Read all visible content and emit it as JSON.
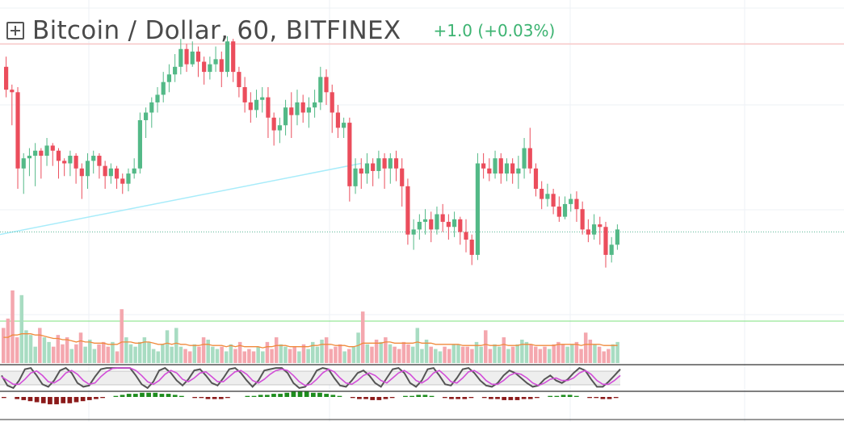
{
  "header": {
    "symbol_title": "Bitcoin / Dollar, 60, BITFINEX",
    "change_text": "+1.0 (+0.03%)"
  },
  "colors": {
    "up": "#53b987",
    "down": "#eb4d5c",
    "up_volume": "#a8dcc2",
    "down_volume": "#f4a7ae",
    "volume_ma": "#f08a3c",
    "trendline": "#a8ecfa",
    "stoch_k": "#555555",
    "stoch_d": "#d24ed8",
    "macd_hist_up": "#1e8c1e",
    "macd_hist_down": "#8b1a1a",
    "price_level_line": "#f7c6c6",
    "volume_level_line": "#7ee07e",
    "last_price_line": "#5fb99a"
  },
  "chart_data": [
    {
      "type": "candlestick",
      "title": "Bitcoin / Dollar, 60, BITFINEX",
      "ylim": [
        0,
        100
      ],
      "note_units": "y values expressed on a 0-100 relative price scale (no price axis labels visible)",
      "candles": [
        [
          88,
          79,
          92,
          76
        ],
        [
          79,
          78,
          81,
          65
        ],
        [
          78,
          48,
          80,
          40
        ],
        [
          48,
          52,
          54,
          38
        ],
        [
          52,
          53,
          56,
          45
        ],
        [
          53,
          55,
          58,
          41
        ],
        [
          55,
          53,
          56,
          44
        ],
        [
          53,
          57,
          60,
          49
        ],
        [
          57,
          55,
          58,
          49
        ],
        [
          55,
          51,
          56,
          44
        ],
        [
          51,
          50,
          52,
          45
        ],
        [
          50,
          53,
          55,
          45
        ],
        [
          53,
          48,
          54,
          42
        ],
        [
          48,
          45,
          50,
          36
        ],
        [
          45,
          51,
          54,
          40
        ],
        [
          51,
          53,
          55,
          46
        ],
        [
          53,
          49,
          54,
          44
        ],
        [
          49,
          45,
          51,
          40
        ],
        [
          45,
          48,
          50,
          42
        ],
        [
          48,
          44,
          49,
          40
        ],
        [
          44,
          42,
          46,
          38
        ],
        [
          42,
          46,
          48,
          39
        ],
        [
          46,
          48,
          52,
          44
        ],
        [
          48,
          67,
          70,
          46
        ],
        [
          67,
          70,
          72,
          60
        ],
        [
          70,
          74,
          76,
          64
        ],
        [
          74,
          77,
          80,
          70
        ],
        [
          77,
          82,
          86,
          74
        ],
        [
          82,
          85,
          89,
          78
        ],
        [
          85,
          88,
          93,
          82
        ],
        [
          88,
          95,
          99,
          85
        ],
        [
          95,
          89,
          97,
          86
        ],
        [
          89,
          94,
          98,
          88
        ],
        [
          94,
          90,
          96,
          84
        ],
        [
          90,
          86,
          92,
          81
        ],
        [
          86,
          89,
          92,
          83
        ],
        [
          89,
          91,
          96,
          86
        ],
        [
          91,
          86,
          94,
          80
        ],
        [
          86,
          98,
          100,
          84
        ],
        [
          98,
          86,
          99,
          82
        ],
        [
          86,
          80,
          88,
          76
        ],
        [
          80,
          74,
          84,
          70
        ],
        [
          74,
          71,
          78,
          66
        ],
        [
          71,
          75,
          79,
          68
        ],
        [
          75,
          76,
          80,
          70
        ],
        [
          76,
          68,
          80,
          60
        ],
        [
          68,
          63,
          70,
          57
        ],
        [
          63,
          65,
          68,
          58
        ],
        [
          65,
          72,
          75,
          61
        ],
        [
          72,
          69,
          78,
          60
        ],
        [
          69,
          74,
          79,
          65
        ],
        [
          74,
          70,
          77,
          66
        ],
        [
          70,
          72,
          76,
          64
        ],
        [
          72,
          74,
          79,
          68
        ],
        [
          74,
          84,
          88,
          71
        ],
        [
          84,
          78,
          87,
          73
        ],
        [
          78,
          70,
          81,
          62
        ],
        [
          70,
          64,
          73,
          60
        ],
        [
          64,
          66,
          68,
          60
        ],
        [
          66,
          41,
          68,
          35
        ],
        [
          41,
          48,
          52,
          38
        ],
        [
          48,
          46,
          52,
          40
        ],
        [
          46,
          50,
          54,
          42
        ],
        [
          50,
          47,
          52,
          41
        ],
        [
          47,
          52,
          55,
          44
        ],
        [
          52,
          48,
          54,
          40
        ],
        [
          48,
          52,
          54,
          42
        ],
        [
          52,
          48,
          55,
          43
        ],
        [
          48,
          41,
          52,
          33
        ],
        [
          41,
          22,
          44,
          18
        ],
        [
          22,
          24,
          28,
          16
        ],
        [
          24,
          27,
          30,
          20
        ],
        [
          27,
          28,
          32,
          22
        ],
        [
          28,
          24,
          31,
          19
        ],
        [
          24,
          30,
          33,
          22
        ],
        [
          30,
          27,
          34,
          23
        ],
        [
          27,
          25,
          30,
          20
        ],
        [
          25,
          28,
          31,
          21
        ],
        [
          28,
          23,
          29,
          18
        ],
        [
          23,
          20,
          28,
          15
        ],
        [
          20,
          14,
          22,
          10
        ],
        [
          14,
          50,
          54,
          12
        ],
        [
          50,
          48,
          54,
          44
        ],
        [
          48,
          46,
          52,
          43
        ],
        [
          46,
          52,
          55,
          44
        ],
        [
          52,
          46,
          54,
          42
        ],
        [
          46,
          50,
          52,
          43
        ],
        [
          50,
          46,
          52,
          42
        ],
        [
          46,
          48,
          53,
          40
        ],
        [
          48,
          56,
          60,
          44
        ],
        [
          56,
          48,
          64,
          46
        ],
        [
          48,
          40,
          50,
          37
        ],
        [
          40,
          36,
          43,
          32
        ],
        [
          36,
          38,
          42,
          33
        ],
        [
          38,
          33,
          40,
          30
        ],
        [
          33,
          29,
          37,
          27
        ],
        [
          29,
          34,
          37,
          28
        ],
        [
          34,
          36,
          38,
          31
        ],
        [
          36,
          32,
          39,
          27
        ],
        [
          32,
          24,
          35,
          22
        ],
        [
          24,
          22,
          28,
          19
        ],
        [
          22,
          26,
          30,
          20
        ],
        [
          26,
          25,
          29,
          18
        ],
        [
          25,
          14,
          27,
          9
        ],
        [
          14,
          18,
          21,
          11
        ],
        [
          18,
          24,
          26,
          16
        ]
      ],
      "annotations": [
        {
          "type": "trendline",
          "from_candle": 0,
          "from_value": 22,
          "to_candle": 61,
          "to_value": 50
        },
        {
          "type": "horizontal_line",
          "value": 97,
          "label": ""
        },
        {
          "type": "last_price_line",
          "value": 23
        }
      ]
    },
    {
      "type": "bar",
      "series_name": "Volume",
      "values": [
        30,
        38,
        62,
        22,
        58,
        28,
        24,
        14,
        30,
        22,
        18,
        14,
        24,
        16,
        22,
        12,
        16,
        26,
        14,
        20,
        12,
        16,
        18,
        14,
        18,
        10,
        46,
        22,
        16,
        14,
        18,
        22,
        18,
        12,
        10,
        16,
        28,
        14,
        30,
        14,
        12,
        10,
        16,
        14,
        22,
        20,
        14,
        12,
        14,
        10,
        16,
        12,
        18,
        10,
        12,
        10,
        14,
        10,
        18,
        12,
        22,
        16,
        14,
        12,
        14,
        10,
        16,
        12,
        18,
        14,
        20,
        22,
        12,
        14,
        16,
        10,
        12,
        14,
        26,
        44,
        16,
        14,
        20,
        18,
        22,
        16,
        14,
        12,
        18,
        16,
        14,
        30,
        12,
        20,
        14,
        12,
        10,
        14,
        12,
        16,
        16,
        14,
        14,
        12,
        18,
        14,
        28,
        12,
        16,
        14,
        22,
        12,
        14,
        16,
        20,
        18,
        16,
        14,
        12,
        14,
        12,
        16,
        18,
        16,
        14,
        16,
        18,
        12,
        26,
        20,
        16,
        14,
        10,
        12,
        16,
        18
      ],
      "ma_values": [
        22,
        22,
        24,
        24,
        25,
        25,
        25,
        24,
        24,
        23,
        22,
        21,
        21,
        20,
        20,
        19,
        18,
        19,
        18,
        18,
        17,
        17,
        17,
        16,
        16,
        16,
        18,
        18,
        18,
        17,
        17,
        18,
        18,
        17,
        16,
        16,
        17,
        16,
        17,
        16,
        16,
        15,
        15,
        15,
        16,
        16,
        15,
        15,
        15,
        14,
        15,
        14,
        15,
        14,
        14,
        14,
        14,
        13,
        14,
        14,
        15,
        15,
        15,
        14,
        14,
        14,
        14,
        14,
        15,
        15,
        16,
        16,
        16,
        15,
        15,
        15,
        14,
        14,
        15,
        17,
        17,
        17,
        17,
        17,
        18,
        18,
        17,
        17,
        17,
        17,
        17,
        18,
        17,
        17,
        17,
        16,
        16,
        16,
        16,
        16,
        16,
        15,
        15,
        15,
        15,
        15,
        16,
        15,
        15,
        15,
        16,
        15,
        15,
        15,
        16,
        16,
        16,
        15,
        15,
        15,
        15,
        15,
        16,
        16,
        16,
        16,
        16,
        15,
        16,
        16,
        16,
        16,
        15,
        15,
        15,
        15
      ]
    },
    {
      "type": "line",
      "series_name": "Stochastic",
      "ylim": [
        0,
        100
      ],
      "series": [
        {
          "name": "%K",
          "values": [
            60,
            20,
            10,
            40,
            85,
            90,
            60,
            25,
            15,
            40,
            80,
            90,
            70,
            30,
            15,
            20,
            55,
            85,
            90,
            90,
            90,
            90,
            90,
            60,
            25,
            10,
            35,
            80,
            90,
            70,
            40,
            20,
            45,
            80,
            85,
            60,
            30,
            20,
            50,
            85,
            90,
            70,
            40,
            15,
            40,
            80,
            85,
            90,
            90,
            70,
            30,
            10,
            15,
            40,
            80,
            90,
            85,
            50,
            20,
            15,
            40,
            70,
            80,
            60,
            30,
            15,
            50,
            85,
            90,
            70,
            30,
            15,
            40,
            85,
            90,
            60,
            25,
            20,
            50,
            85,
            90,
            70,
            40,
            20,
            15,
            30,
            60,
            80,
            70,
            50,
            30,
            15,
            20,
            45,
            60,
            40,
            30,
            45,
            70,
            90,
            80,
            45,
            15,
            15,
            35,
            60,
            85
          ]
        },
        {
          "name": "%D",
          "values": [
            55,
            40,
            25,
            25,
            45,
            70,
            78,
            60,
            35,
            30,
            45,
            70,
            80,
            65,
            40,
            25,
            30,
            55,
            75,
            88,
            90,
            90,
            90,
            80,
            60,
            35,
            25,
            40,
            65,
            80,
            70,
            45,
            35,
            50,
            70,
            75,
            55,
            35,
            35,
            55,
            75,
            80,
            65,
            40,
            30,
            45,
            65,
            80,
            85,
            80,
            60,
            35,
            20,
            25,
            45,
            70,
            85,
            75,
            50,
            30,
            25,
            40,
            60,
            70,
            60,
            40,
            30,
            50,
            70,
            80,
            65,
            40,
            30,
            45,
            70,
            80,
            60,
            35,
            30,
            50,
            75,
            80,
            65,
            40,
            25,
            25,
            40,
            60,
            70,
            65,
            50,
            30,
            20,
            30,
            45,
            50,
            40,
            40,
            50,
            70,
            80,
            65,
            40,
            25,
            25,
            40,
            60
          ]
        }
      ]
    },
    {
      "type": "bar",
      "series_name": "MACD histogram",
      "values": [
        -1,
        0,
        -2,
        -3,
        -4,
        -5,
        -6,
        -7,
        -7,
        -6,
        -6,
        -5,
        -4,
        -3,
        -2,
        -1,
        0,
        1,
        2,
        3,
        3,
        4,
        4,
        4,
        3,
        3,
        2,
        1,
        0,
        -1,
        -1,
        -2,
        -2,
        -2,
        -1,
        0,
        0,
        1,
        1,
        2,
        2,
        3,
        3,
        4,
        5,
        5,
        5,
        4,
        4,
        3,
        2,
        1,
        0,
        -1,
        -2,
        -2,
        -3,
        -3,
        -2,
        -1,
        0,
        1,
        1,
        2,
        2,
        1,
        0,
        -1,
        -2,
        -2,
        -2,
        -1,
        0,
        -1,
        -2,
        -2,
        -3,
        -3,
        -3,
        -2,
        -2,
        -1,
        0,
        1,
        1,
        2,
        2,
        1,
        0,
        -1,
        -1,
        -2,
        -2,
        -1
      ]
    }
  ]
}
